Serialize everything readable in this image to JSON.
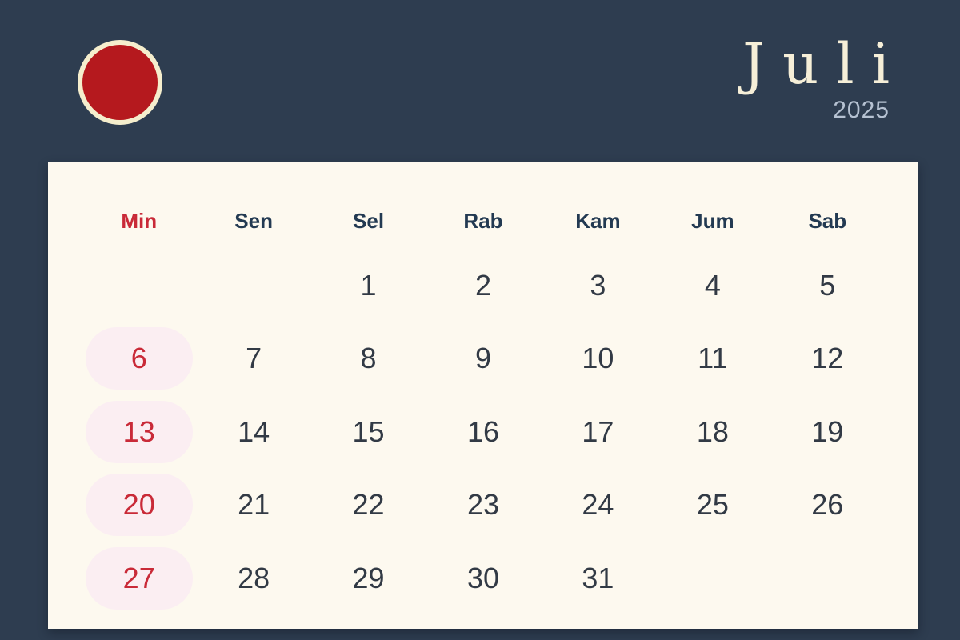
{
  "title": {
    "month": "Juli",
    "year": "2025"
  },
  "logo": {
    "description": "red circle with cream ring"
  },
  "calendar": {
    "day_headers": [
      {
        "label": "Min"
      },
      {
        "label": "Sen"
      },
      {
        "label": "Sel"
      },
      {
        "label": "Rab"
      },
      {
        "label": "Kam"
      },
      {
        "label": "Jum"
      },
      {
        "label": "Sab"
      }
    ],
    "weeks": [
      [
        "",
        "",
        "1",
        "2",
        "3",
        "4",
        "5"
      ],
      [
        "6",
        "7",
        "8",
        "9",
        "10",
        "11",
        "12"
      ],
      [
        "13",
        "14",
        "15",
        "16",
        "17",
        "18",
        "19"
      ],
      [
        "20",
        "21",
        "22",
        "23",
        "24",
        "25",
        "26"
      ],
      [
        "27",
        "28",
        "29",
        "30",
        "31",
        "",
        ""
      ]
    ],
    "highlighted_days": [
      "6",
      "13",
      "20",
      "27"
    ]
  },
  "colors": {
    "bg": "#2e3d50",
    "panel": "#fdf9ef",
    "accent_red": "#c92a38",
    "pill_pink": "#fbeef2",
    "day_text": "#323a45",
    "header_text": "#233a52",
    "title_cream": "#f6efd8",
    "year_gray": "#b6c2d2",
    "logo_red": "#b5191e",
    "logo_ring": "#f5eecd"
  }
}
